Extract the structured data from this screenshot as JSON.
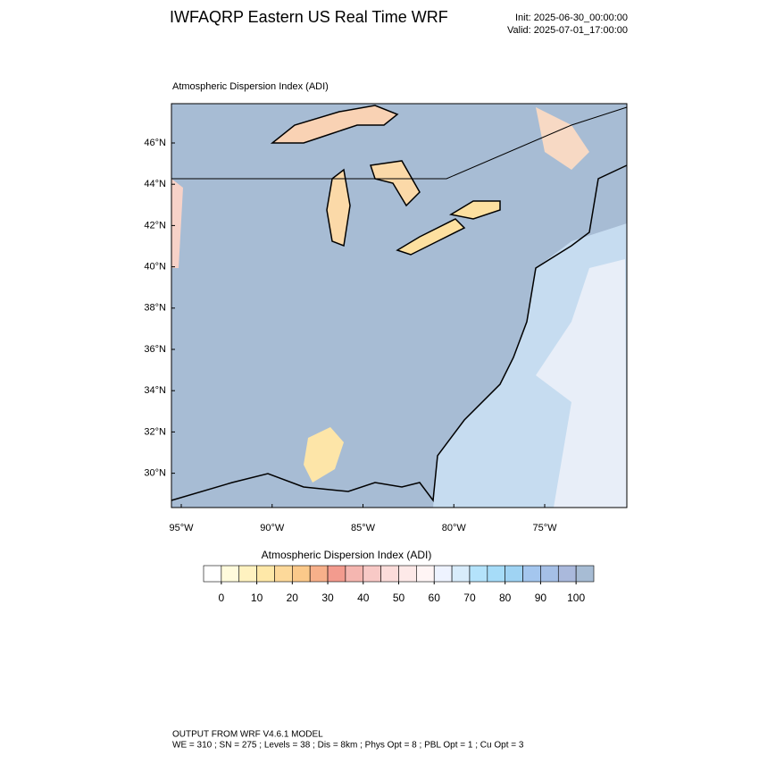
{
  "header": {
    "title": "IWFAQRP Eastern US Real Time WRF",
    "init": "Init: 2025-06-30_00:00:00",
    "valid": "Valid: 2025-07-01_17:00:00"
  },
  "map": {
    "title": "Atmospheric Dispersion Index   (ADI)",
    "lat_ticks": [
      {
        "value": 46,
        "label": "46°N"
      },
      {
        "value": 44,
        "label": "44°N"
      },
      {
        "value": 42,
        "label": "42°N"
      },
      {
        "value": 40,
        "label": "40°N"
      },
      {
        "value": 38,
        "label": "38°N"
      },
      {
        "value": 36,
        "label": "36°N"
      },
      {
        "value": 34,
        "label": "34°N"
      },
      {
        "value": 32,
        "label": "32°N"
      },
      {
        "value": 30,
        "label": "30°N"
      }
    ],
    "lon_ticks": [
      {
        "value": -95,
        "label": "95°W"
      },
      {
        "value": -90,
        "label": "90°W"
      },
      {
        "value": -85,
        "label": "85°W"
      },
      {
        "value": -80,
        "label": "80°W"
      },
      {
        "value": -75,
        "label": "75°W"
      }
    ]
  },
  "colorbar": {
    "title": "Atmospheric Dispersion Index  (ADI)",
    "ticks": [
      0,
      10,
      20,
      30,
      40,
      50,
      60,
      70,
      80,
      90,
      100
    ],
    "colors": [
      "#ffffff",
      "#fffbdc",
      "#fff2c0",
      "#fee8a8",
      "#fdd99a",
      "#fbc98a",
      "#f7b08a",
      "#f39b8e",
      "#f5b6b0",
      "#f8c9c6",
      "#fbdcda",
      "#fde9e8",
      "#fff5f5",
      "#eef3ff",
      "#d8ecfb",
      "#b4e3fb",
      "#a6dcf8",
      "#9fd3f3",
      "#a4c6ee",
      "#a5bfe6",
      "#aab9dc",
      "#a7bcd4"
    ]
  },
  "footer": {
    "line1": "OUTPUT FROM WRF V4.6.1 MODEL",
    "line2": "WE = 310 ; SN = 275 ; Levels = 38 ; Dis = 8km ; Phys Opt = 8 ; PBL Opt = 1 ; Cu Opt = 3"
  }
}
